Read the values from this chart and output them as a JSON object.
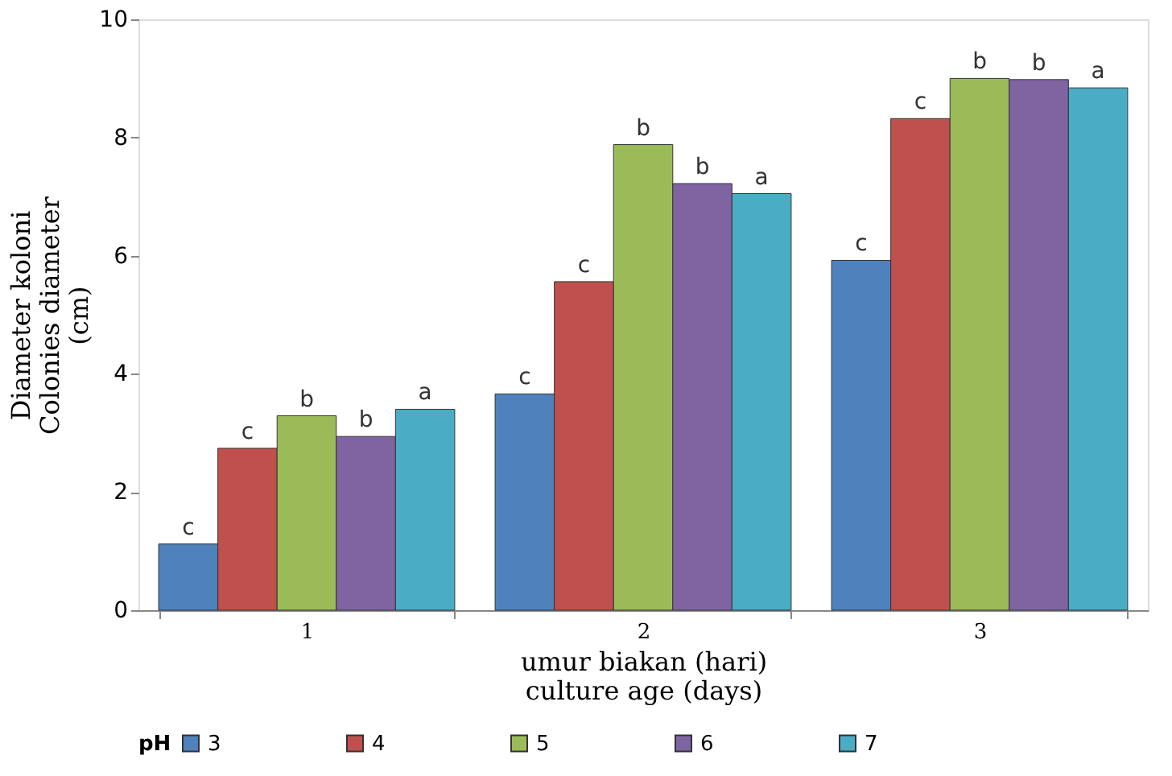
{
  "chart_data": {
    "type": "bar",
    "xlabel": "umur biakan (hari)\nculture age (days)",
    "ylabel": "Diameter koloni\nColonies diameter\n(cm)",
    "legend_title": "pH",
    "categories": [
      "1",
      "2",
      "3"
    ],
    "series": [
      {
        "name": "3",
        "color": "#4f81bd",
        "values": [
          1.12,
          3.66,
          5.92
        ],
        "value_labels": [
          "c",
          "c",
          "c"
        ]
      },
      {
        "name": "4",
        "color": "#c0504d",
        "values": [
          2.74,
          5.56,
          8.32
        ],
        "value_labels": [
          "c",
          "c",
          "c"
        ]
      },
      {
        "name": "5",
        "color": "#9bbb59",
        "values": [
          3.29,
          7.88,
          9.0
        ],
        "value_labels": [
          "b",
          "b",
          "b"
        ]
      },
      {
        "name": "6",
        "color": "#8064a2",
        "values": [
          2.94,
          7.22,
          8.98
        ],
        "value_labels": [
          "b",
          "b",
          "b"
        ]
      },
      {
        "name": "7",
        "color": "#4bacc6",
        "values": [
          3.4,
          7.05,
          8.84
        ],
        "value_labels": [
          "a",
          "a",
          "a"
        ]
      }
    ],
    "ylim": [
      0,
      10
    ],
    "yticks": [
      0,
      2,
      4,
      6,
      8,
      10
    ],
    "grid": false,
    "legend": "bottom"
  }
}
